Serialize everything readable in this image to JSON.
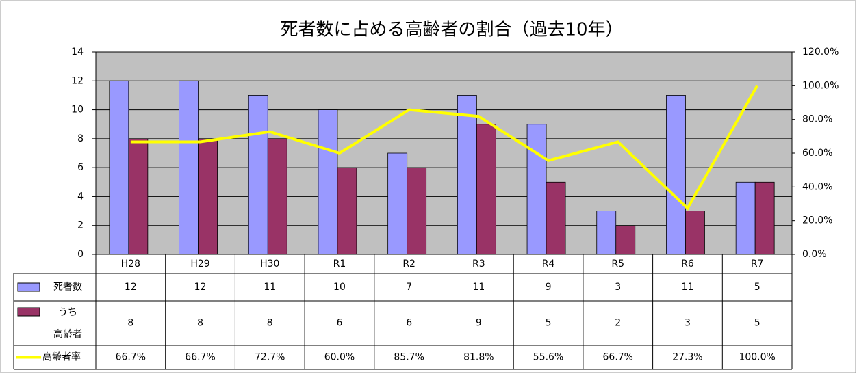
{
  "chart_data": {
    "type": "bar-line-table",
    "title": "死者数に占める高齢者の割合（過去10年）",
    "categories": [
      "H28",
      "H29",
      "H30",
      "R1",
      "R2",
      "R3",
      "R4",
      "R5",
      "R6",
      "R7"
    ],
    "series": [
      {
        "name": "死者数",
        "color": "#9999ff",
        "values": [
          12,
          12,
          11,
          10,
          7,
          11,
          9,
          3,
          11,
          5
        ]
      },
      {
        "name": "うち\n高齢者",
        "color": "#993366",
        "values": [
          8,
          8,
          8,
          6,
          6,
          9,
          5,
          2,
          3,
          5
        ]
      },
      {
        "name": "高齢者率",
        "color": "#ffff00",
        "axis": "y2",
        "type": "line",
        "values": [
          66.7,
          66.7,
          72.7,
          60.0,
          85.7,
          81.8,
          55.6,
          66.7,
          27.3,
          100.0
        ],
        "value_labels": [
          "66.7%",
          "66.7%",
          "72.7%",
          "60.0%",
          "85.7%",
          "81.8%",
          "55.6%",
          "66.7%",
          "27.3%",
          "100.0%"
        ]
      }
    ],
    "ylim": [
      0,
      14
    ],
    "yticks": [
      0,
      2,
      4,
      6,
      8,
      10,
      12,
      14
    ],
    "y2lim": [
      0,
      120
    ],
    "y2ticks": [
      {
        "value": 0,
        "label": "0.0%"
      },
      {
        "value": 20,
        "label": "20.0%"
      },
      {
        "value": 40,
        "label": "40.0%"
      },
      {
        "value": 60,
        "label": "60.0%"
      },
      {
        "value": 80,
        "label": "80.0%"
      },
      {
        "value": 100,
        "label": "100.0%"
      },
      {
        "value": 120,
        "label": "120.0%"
      }
    ],
    "grid": true
  }
}
